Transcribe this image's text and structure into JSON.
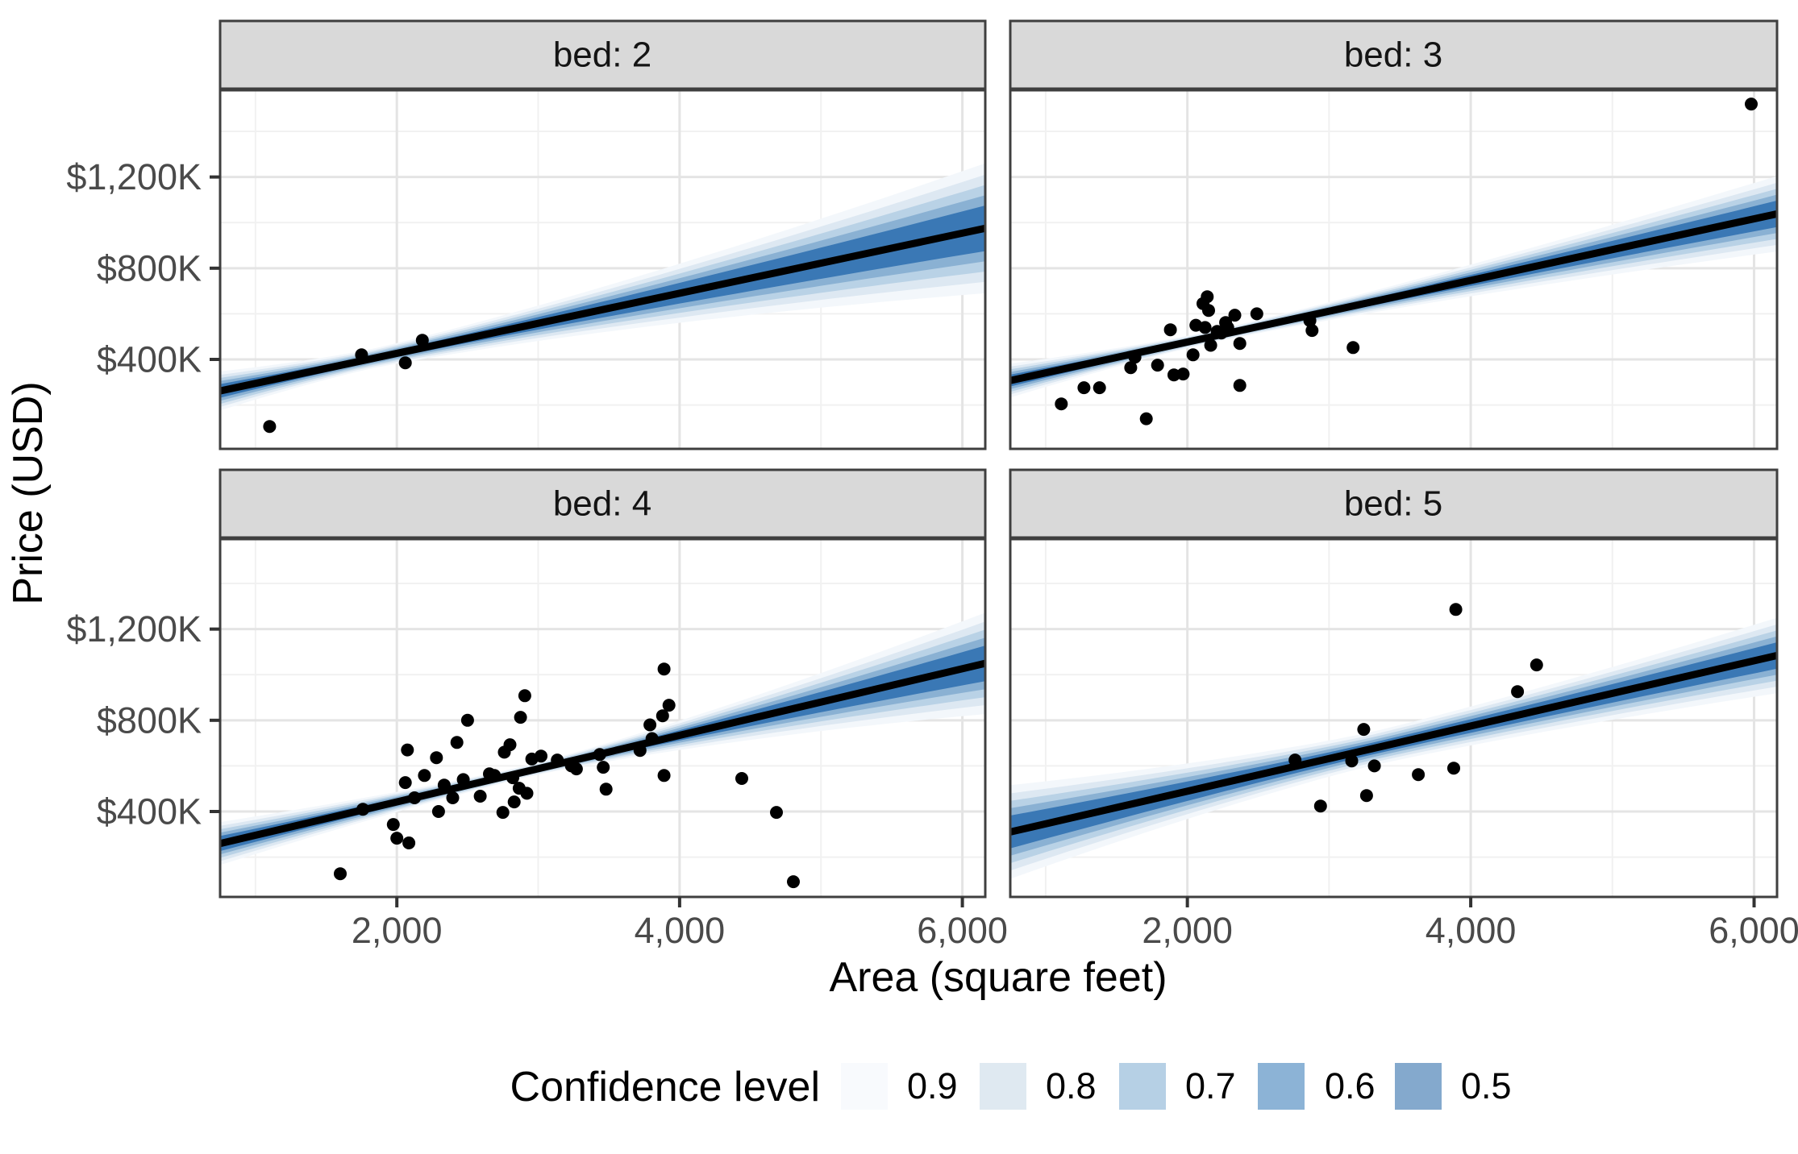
{
  "chart_data": {
    "type": "scatter",
    "title": "",
    "xlabel": "Area (square feet)",
    "ylabel": "Price (USD)",
    "x_ticks": [
      2000,
      4000,
      6000
    ],
    "x_tick_labels": [
      "2,000",
      "4,000",
      "6,000"
    ],
    "x_minor_ticks": [
      1000,
      3000,
      5000
    ],
    "y_ticks": [
      400,
      800,
      1200
    ],
    "y_tick_labels": [
      "$400K",
      "$800K",
      "$1,200K"
    ],
    "y_minor_ticks": [
      200,
      600,
      1000,
      1400
    ],
    "x_range": [
      750,
      6162
    ],
    "y_range_k": [
      8,
      1590
    ],
    "grid": "major+minor on white background",
    "units": "prices in thousands of USD (K), area in square feet",
    "legend": {
      "title": "Confidence level",
      "position": "bottom",
      "entries": [
        {
          "label": "0.9",
          "color": "#f8fafd"
        },
        {
          "label": "0.8",
          "color": "#dfe9f1"
        },
        {
          "label": "0.7",
          "color": "#b6d0e5"
        },
        {
          "label": "0.6",
          "color": "#8cb3d6"
        },
        {
          "label": "0.5",
          "color": "#84a9cd"
        }
      ]
    },
    "band_levels": [
      "0.9",
      "0.8",
      "0.7",
      "0.6",
      "0.5"
    ],
    "band_level_scales": [
      2.85,
      2.35,
      1.9,
      1.45,
      1.0
    ],
    "band_plot_colors": [
      "#f3f7fb",
      "#dde8f2",
      "#b9d2e6",
      "#8ab1d3",
      "#3a78b5"
    ],
    "facets": [
      {
        "label": "bed: 2",
        "line": {
          "intercept_k": 163,
          "slope_k_per_sqft": 0.1318
        },
        "band": {
          "x_waist": 1800,
          "hw_left_k": 30,
          "hw_waist_k": 15,
          "hw_right_k": 100
        },
        "points": [
          [
            1100,
            106
          ],
          [
            1750,
            420
          ],
          [
            2060,
            385
          ],
          [
            2180,
            484
          ]
        ]
      },
      {
        "label": "bed: 3",
        "line": {
          "intercept_k": 206,
          "slope_k_per_sqft": 0.1351
        },
        "band": {
          "x_waist": 2150,
          "hw_left_k": 26,
          "hw_waist_k": 9,
          "hw_right_k": 58
        },
        "points": [
          [
            1110,
            205
          ],
          [
            1270,
            276
          ],
          [
            1380,
            276
          ],
          [
            1600,
            364
          ],
          [
            1630,
            410
          ],
          [
            1710,
            140
          ],
          [
            1790,
            375
          ],
          [
            1880,
            530
          ],
          [
            1905,
            332
          ],
          [
            1970,
            336
          ],
          [
            2040,
            420
          ],
          [
            2060,
            550
          ],
          [
            2110,
            645
          ],
          [
            2125,
            540
          ],
          [
            2140,
            675
          ],
          [
            2150,
            615
          ],
          [
            2165,
            462
          ],
          [
            2210,
            523
          ],
          [
            2240,
            516
          ],
          [
            2270,
            562
          ],
          [
            2285,
            540
          ],
          [
            2335,
            594
          ],
          [
            2370,
            470
          ],
          [
            2370,
            286
          ],
          [
            2490,
            600
          ],
          [
            2865,
            570
          ],
          [
            2880,
            527
          ],
          [
            3170,
            452
          ],
          [
            5980,
            1520
          ]
        ]
      },
      {
        "label": "bed: 4",
        "line": {
          "intercept_k": 150,
          "slope_k_per_sqft": 0.146
        },
        "band": {
          "x_waist": 2900,
          "hw_left_k": 33,
          "hw_waist_k": 9,
          "hw_right_k": 78
        },
        "points": [
          [
            1600,
            127
          ],
          [
            1760,
            410
          ],
          [
            1975,
            343
          ],
          [
            2000,
            283
          ],
          [
            2085,
            262
          ],
          [
            2075,
            670
          ],
          [
            2060,
            527
          ],
          [
            2125,
            460
          ],
          [
            2195,
            558
          ],
          [
            2280,
            636
          ],
          [
            2295,
            400
          ],
          [
            2335,
            516
          ],
          [
            2395,
            460
          ],
          [
            2425,
            703
          ],
          [
            2500,
            800
          ],
          [
            2470,
            540
          ],
          [
            2590,
            467
          ],
          [
            2655,
            565
          ],
          [
            2690,
            558
          ],
          [
            2750,
            396
          ],
          [
            2760,
            660
          ],
          [
            2800,
            693
          ],
          [
            2820,
            548
          ],
          [
            2830,
            442
          ],
          [
            2875,
            813
          ],
          [
            2905,
            908
          ],
          [
            2865,
            502
          ],
          [
            2920,
            480
          ],
          [
            2955,
            630
          ],
          [
            3020,
            643
          ],
          [
            3135,
            626
          ],
          [
            3235,
            600
          ],
          [
            3270,
            587
          ],
          [
            3435,
            650
          ],
          [
            3460,
            594
          ],
          [
            3480,
            498
          ],
          [
            3720,
            668
          ],
          [
            3790,
            780
          ],
          [
            3805,
            720
          ],
          [
            3880,
            820
          ],
          [
            3890,
            1025
          ],
          [
            3925,
            866
          ],
          [
            3890,
            558
          ],
          [
            4440,
            545
          ],
          [
            4685,
            396
          ],
          [
            4805,
            92
          ]
        ]
      },
      {
        "label": "bed: 5",
        "line": {
          "intercept_k": 203,
          "slope_k_per_sqft": 0.143
        },
        "band": {
          "x_waist": 3300,
          "hw_left_k": 72,
          "hw_waist_k": 26,
          "hw_right_k": 58
        },
        "points": [
          [
            2760,
            626
          ],
          [
            2940,
            424
          ],
          [
            3160,
            622
          ],
          [
            3245,
            760
          ],
          [
            3265,
            470
          ],
          [
            3320,
            600
          ],
          [
            3630,
            562
          ],
          [
            3880,
            590
          ],
          [
            3895,
            1286
          ],
          [
            4330,
            926
          ],
          [
            4465,
            1043
          ]
        ]
      }
    ],
    "colors": {
      "background": "#ffffff",
      "strip_fill": "#d9d9d9",
      "strip_border": "#3f3f3f",
      "strip_text": "#141414",
      "panel_border": "#3f3f3f",
      "grid_major": "#e4e4e4",
      "grid_minor": "#f1f1f1",
      "regression_line": "#000000",
      "point": "#000000",
      "tick": "#333333",
      "tick_label": "#4a4a4a",
      "axis_title": "#000000"
    }
  }
}
